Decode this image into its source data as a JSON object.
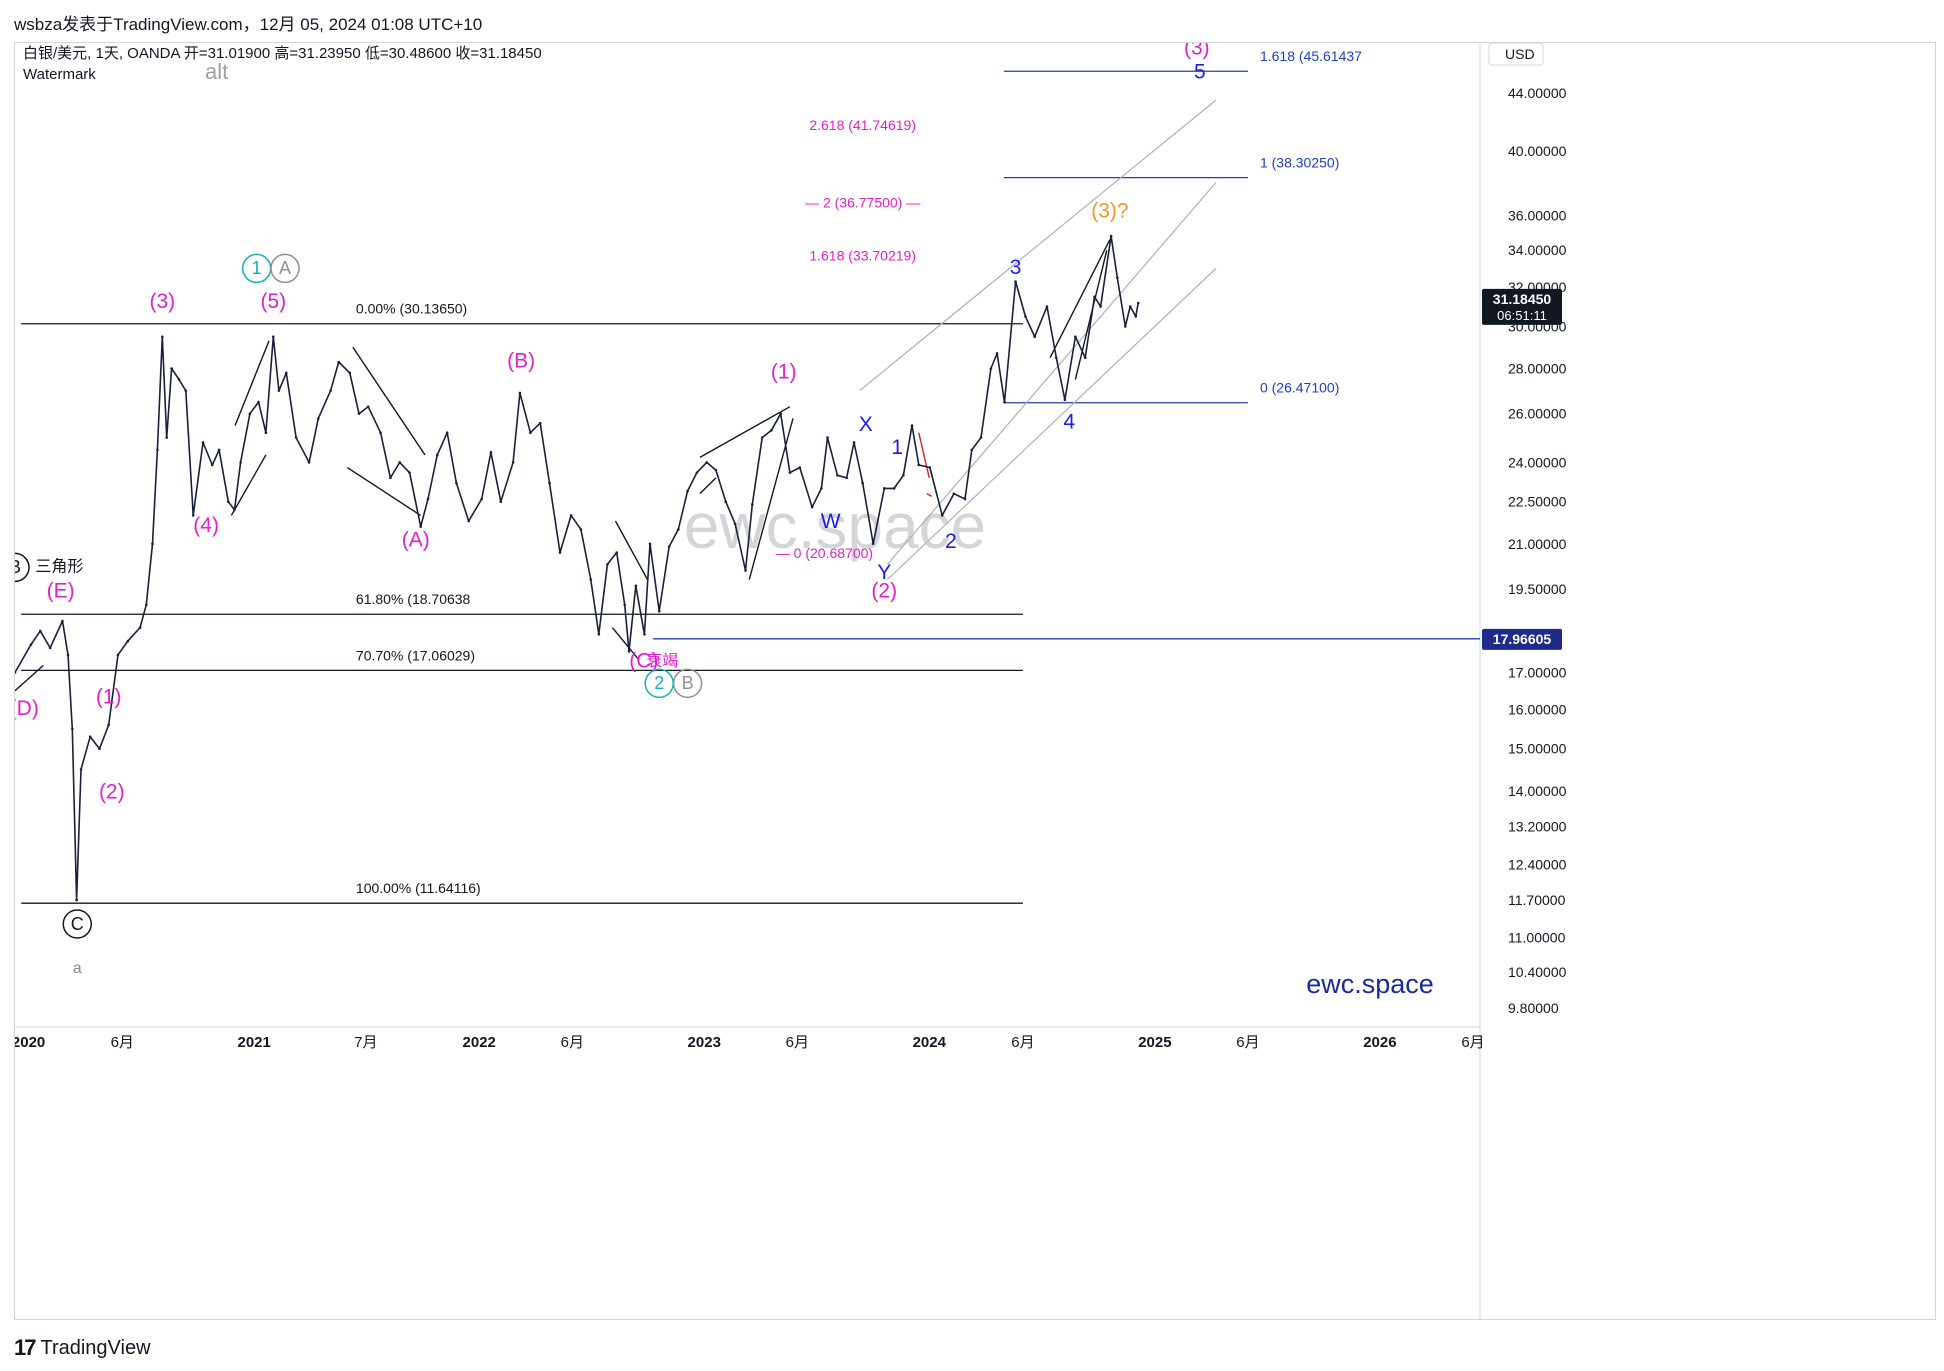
{
  "meta": {
    "publish_line": "wsbza发表于TradingView.com，12月 05, 2024 01:08 UTC+10",
    "footer_brand": "TradingView",
    "watermark_text": "ewc.space",
    "brand_corner": "ewc.space"
  },
  "chart_data": {
    "type": "line",
    "symbol_line": "白银/美元, 1天, OANDA  开=31.01900  高=31.23950  低=30.48600  收=31.18450",
    "indicator_label": "Watermark",
    "alt_label": "alt",
    "currency": "USD",
    "scale": "log",
    "ylim": [
      9.5,
      47
    ],
    "x_ticks": [
      "2020",
      "6月",
      "2021",
      "7月",
      "2022",
      "6月",
      "2023",
      "6月",
      "2024",
      "6月",
      "2025",
      "6月",
      "2026",
      "6月"
    ],
    "x_tick_dates": [
      "2020-01",
      "2020-06",
      "2021-01",
      "2021-07",
      "2022-01",
      "2022-06",
      "2023-01",
      "2023-06",
      "2024-01",
      "2024-06",
      "2025-01",
      "2025-06",
      "2026-01",
      "2026-06"
    ],
    "y_ticks": [
      "9.80000",
      "10.40000",
      "11.00000",
      "11.70000",
      "12.40000",
      "13.20000",
      "14.00000",
      "15.00000",
      "16.00000",
      "17.00000",
      "19.50000",
      "21.00000",
      "22.50000",
      "24.00000",
      "26.00000",
      "28.00000",
      "30.00000",
      "32.00000",
      "34.00000",
      "36.00000",
      "40.00000",
      "44.00000"
    ],
    "y_tick_values": [
      9.8,
      10.4,
      11.0,
      11.7,
      12.4,
      13.2,
      14.0,
      15.0,
      16.0,
      17.0,
      19.5,
      21.0,
      22.5,
      24.0,
      26.0,
      28.0,
      30.0,
      32.0,
      34.0,
      36.0,
      40.0,
      44.0
    ],
    "price_tag": {
      "value": 31.1845,
      "label": "31.18450",
      "countdown": "06:51:11",
      "color": "#131722"
    },
    "level_tag": {
      "value": 17.96605,
      "label": "17.96605",
      "color": "#1e2b8c"
    },
    "series": [
      {
        "color": "#1a1f3d",
        "points": [
          [
            "2019-12-10",
            17.0
          ],
          [
            "2020-01-05",
            17.8
          ],
          [
            "2020-01-20",
            18.2
          ],
          [
            "2020-02-05",
            17.7
          ],
          [
            "2020-02-25",
            18.5
          ],
          [
            "2020-03-05",
            17.5
          ],
          [
            "2020-03-12",
            15.5
          ],
          [
            "2020-03-19",
            11.7
          ],
          [
            "2020-03-26",
            14.5
          ],
          [
            "2020-04-10",
            15.3
          ],
          [
            "2020-04-25",
            15.0
          ],
          [
            "2020-05-10",
            15.6
          ],
          [
            "2020-05-25",
            17.5
          ],
          [
            "2020-06-10",
            17.9
          ],
          [
            "2020-06-30",
            18.3
          ],
          [
            "2020-07-10",
            19.0
          ],
          [
            "2020-07-20",
            21.0
          ],
          [
            "2020-07-28",
            24.5
          ],
          [
            "2020-08-05",
            29.5
          ],
          [
            "2020-08-12",
            25.0
          ],
          [
            "2020-08-20",
            28.0
          ],
          [
            "2020-09-01",
            27.5
          ],
          [
            "2020-09-12",
            27.0
          ],
          [
            "2020-09-24",
            22.0
          ],
          [
            "2020-10-10",
            24.8
          ],
          [
            "2020-10-25",
            23.9
          ],
          [
            "2020-11-05",
            24.5
          ],
          [
            "2020-11-20",
            22.5
          ],
          [
            "2020-11-30",
            22.2
          ],
          [
            "2020-12-10",
            24.0
          ],
          [
            "2020-12-25",
            26.0
          ],
          [
            "2021-01-08",
            26.5
          ],
          [
            "2021-01-20",
            25.2
          ],
          [
            "2021-02-01",
            29.5
          ],
          [
            "2021-02-10",
            27.0
          ],
          [
            "2021-02-22",
            27.8
          ],
          [
            "2021-03-10",
            25.0
          ],
          [
            "2021-03-31",
            24.0
          ],
          [
            "2021-04-15",
            25.8
          ],
          [
            "2021-05-05",
            27.0
          ],
          [
            "2021-05-18",
            28.3
          ],
          [
            "2021-06-05",
            27.8
          ],
          [
            "2021-06-20",
            26.0
          ],
          [
            "2021-07-05",
            26.3
          ],
          [
            "2021-07-25",
            25.2
          ],
          [
            "2021-08-10",
            23.4
          ],
          [
            "2021-08-25",
            24.0
          ],
          [
            "2021-09-10",
            23.6
          ],
          [
            "2021-09-28",
            21.6
          ],
          [
            "2021-10-10",
            22.6
          ],
          [
            "2021-10-25",
            24.3
          ],
          [
            "2021-11-10",
            25.2
          ],
          [
            "2021-11-25",
            23.2
          ],
          [
            "2021-12-15",
            21.8
          ],
          [
            "2022-01-05",
            22.6
          ],
          [
            "2022-01-20",
            24.4
          ],
          [
            "2022-02-05",
            22.5
          ],
          [
            "2022-02-25",
            24.0
          ],
          [
            "2022-03-08",
            26.9
          ],
          [
            "2022-03-25",
            25.2
          ],
          [
            "2022-04-10",
            25.6
          ],
          [
            "2022-04-25",
            23.2
          ],
          [
            "2022-05-12",
            20.7
          ],
          [
            "2022-05-30",
            22.0
          ],
          [
            "2022-06-15",
            21.5
          ],
          [
            "2022-07-01",
            19.8
          ],
          [
            "2022-07-14",
            18.1
          ],
          [
            "2022-07-28",
            20.3
          ],
          [
            "2022-08-12",
            20.7
          ],
          [
            "2022-08-25",
            19.0
          ],
          [
            "2022-09-01",
            17.6
          ],
          [
            "2022-09-12",
            19.6
          ],
          [
            "2022-09-26",
            18.1
          ],
          [
            "2022-10-05",
            21.0
          ],
          [
            "2022-10-20",
            18.8
          ],
          [
            "2022-11-05",
            20.9
          ],
          [
            "2022-11-20",
            21.5
          ],
          [
            "2022-12-05",
            22.9
          ],
          [
            "2022-12-20",
            23.6
          ],
          [
            "2023-01-05",
            24.0
          ],
          [
            "2023-01-20",
            23.7
          ],
          [
            "2023-02-05",
            22.5
          ],
          [
            "2023-02-20",
            21.7
          ],
          [
            "2023-03-09",
            20.1
          ],
          [
            "2023-03-20",
            22.4
          ],
          [
            "2023-04-05",
            25.0
          ],
          [
            "2023-04-20",
            25.3
          ],
          [
            "2023-05-05",
            26.0
          ],
          [
            "2023-05-20",
            23.6
          ],
          [
            "2023-06-05",
            23.8
          ],
          [
            "2023-06-25",
            22.3
          ],
          [
            "2023-07-10",
            23.0
          ],
          [
            "2023-07-20",
            25.0
          ],
          [
            "2023-08-05",
            23.5
          ],
          [
            "2023-08-20",
            23.4
          ],
          [
            "2023-09-01",
            24.8
          ],
          [
            "2023-09-15",
            23.2
          ],
          [
            "2023-10-02",
            21.0
          ],
          [
            "2023-10-20",
            23.0
          ],
          [
            "2023-11-05",
            23.0
          ],
          [
            "2023-11-20",
            23.5
          ],
          [
            "2023-12-04",
            25.5
          ],
          [
            "2023-12-15",
            23.9
          ],
          [
            "2024-01-02",
            23.8
          ],
          [
            "2024-01-22",
            22.0
          ],
          [
            "2024-02-10",
            22.8
          ],
          [
            "2024-02-28",
            22.6
          ],
          [
            "2024-03-10",
            24.5
          ],
          [
            "2024-03-25",
            25.0
          ],
          [
            "2024-04-10",
            28.0
          ],
          [
            "2024-04-20",
            28.7
          ],
          [
            "2024-05-02",
            26.5
          ],
          [
            "2024-05-20",
            32.3
          ],
          [
            "2024-06-05",
            30.5
          ],
          [
            "2024-06-20",
            29.5
          ],
          [
            "2024-07-10",
            31.0
          ],
          [
            "2024-07-25",
            28.5
          ],
          [
            "2024-08-08",
            26.6
          ],
          [
            "2024-08-25",
            29.5
          ],
          [
            "2024-09-10",
            28.5
          ],
          [
            "2024-09-25",
            31.5
          ],
          [
            "2024-10-05",
            31.0
          ],
          [
            "2024-10-22",
            34.8
          ],
          [
            "2024-11-01",
            32.5
          ],
          [
            "2024-11-14",
            30.0
          ],
          [
            "2024-11-22",
            31.0
          ],
          [
            "2024-12-01",
            30.5
          ],
          [
            "2024-12-05",
            31.18
          ]
        ]
      }
    ],
    "hlines": [
      {
        "value": 30.1365,
        "label": "0.00% (30.13650)",
        "color": "#131722",
        "x0": "2019-12-20",
        "x1": "2024-06-01"
      },
      {
        "value": 18.70638,
        "label": "61.80% (18.70638",
        "color": "#131722",
        "x0": "2019-12-20",
        "x1": "2024-06-01"
      },
      {
        "value": 17.06029,
        "label": "70.70% (17.06029)",
        "color": "#131722",
        "x0": "2019-12-20",
        "x1": "2024-06-01"
      },
      {
        "value": 11.64116,
        "label": "100.00% (11.64116)",
        "color": "#131722",
        "x0": "2019-12-20",
        "x1": "2024-06-01"
      },
      {
        "value": 45.61437,
        "label": "1.618 (45.61437",
        "color": "#1f3fbf",
        "x0": "2024-05-01",
        "x1": "2025-06-01"
      },
      {
        "value": 38.3025,
        "label": "1 (38.30250)",
        "color": "#1f3fbf",
        "x0": "2024-05-01",
        "x1": "2025-06-01"
      },
      {
        "value": 26.471,
        "label": "0 (26.47100)",
        "color": "#1f3fbf",
        "x0": "2024-05-01",
        "x1": "2025-06-01"
      },
      {
        "value": 17.96605,
        "label": "",
        "color": "#1f3fbf",
        "x0": "2022-10-10",
        "x1": "2026-07-15"
      }
    ],
    "fib_labels": [
      {
        "value": 41.74619,
        "label": "2.618 (41.74619)",
        "color": "#e020c8",
        "x": "2023-09-15"
      },
      {
        "value": 36.775,
        "label": "— 2 (36.77500) —",
        "color": "#e020c8",
        "x": "2023-09-15"
      },
      {
        "value": 33.70219,
        "label": "1.618 (33.70219)",
        "color": "#e020c8",
        "x": "2023-09-15"
      },
      {
        "value": 20.687,
        "label": "— 0 (20.68700)",
        "color": "#e020c8",
        "x": "2023-07-15"
      }
    ],
    "channels": [
      {
        "color": "#b0b0b0",
        "lines": [
          [
            [
              "2023-09-10",
              27.0
            ],
            [
              "2025-04-10",
              43.5
            ]
          ],
          [
            [
              "2023-10-25",
              20.3
            ],
            [
              "2025-04-10",
              38.0
            ]
          ],
          [
            [
              "2023-10-25",
              19.8
            ],
            [
              "2025-04-10",
              33.0
            ]
          ]
        ]
      }
    ],
    "trendlines": [
      {
        "color": "#131722",
        "points": [
          [
            "2019-12-10",
            16.5
          ],
          [
            "2020-01-25",
            17.2
          ]
        ]
      },
      {
        "color": "#131722",
        "points": [
          [
            "2020-12-01",
            25.5
          ],
          [
            "2021-01-25",
            29.3
          ]
        ]
      },
      {
        "color": "#131722",
        "points": [
          [
            "2020-11-25",
            22.0
          ],
          [
            "2021-01-20",
            24.3
          ]
        ]
      },
      {
        "color": "#131722",
        "points": [
          [
            "2021-06-10",
            29.0
          ],
          [
            "2021-10-05",
            24.3
          ]
        ]
      },
      {
        "color": "#131722",
        "points": [
          [
            "2021-06-01",
            23.8
          ],
          [
            "2021-09-28",
            22.0
          ]
        ]
      },
      {
        "color": "#131722",
        "points": [
          [
            "2022-08-10",
            21.8
          ],
          [
            "2022-10-01",
            19.8
          ]
        ]
      },
      {
        "color": "#131722",
        "points": [
          [
            "2022-08-05",
            18.3
          ],
          [
            "2022-09-15",
            17.4
          ]
        ]
      },
      {
        "color": "#131722",
        "points": [
          [
            "2022-12-25",
            24.2
          ],
          [
            "2023-05-20",
            26.3
          ]
        ]
      },
      {
        "color": "#131722",
        "points": [
          [
            "2022-12-25",
            22.8
          ],
          [
            "2023-01-20",
            23.4
          ]
        ]
      },
      {
        "color": "#131722",
        "points": [
          [
            "2023-03-15",
            19.8
          ],
          [
            "2023-05-25",
            25.8
          ]
        ]
      },
      {
        "color": "#131722",
        "points": [
          [
            "2024-08-25",
            27.5
          ],
          [
            "2024-10-15",
            34.0
          ]
        ]
      },
      {
        "color": "#131722",
        "points": [
          [
            "2024-07-15",
            28.5
          ],
          [
            "2024-10-20",
            34.6
          ]
        ]
      },
      {
        "color": "#e02020",
        "points": [
          [
            "2023-12-15",
            25.2
          ],
          [
            "2024-01-01",
            23.4
          ]
        ]
      },
      {
        "color": "#e02020",
        "points": [
          [
            "2023-12-28",
            22.8
          ],
          [
            "2024-01-05",
            22.7
          ]
        ]
      }
    ],
    "annotations": [
      {
        "text": "(3)",
        "x": "2020-08-05",
        "y": 31.2,
        "color": "#e020c8"
      },
      {
        "text": "(5)",
        "x": "2021-02-01",
        "y": 31.2,
        "color": "#e020c8"
      },
      {
        "text": "(4)",
        "x": "2020-10-15",
        "y": 21.6,
        "color": "#e020c8"
      },
      {
        "text": "(A)",
        "x": "2021-09-20",
        "y": 21.1,
        "color": "#e020c8"
      },
      {
        "text": "(B)",
        "x": "2022-03-10",
        "y": 28.3,
        "color": "#e020c8"
      },
      {
        "text": "(E)",
        "x": "2020-02-22",
        "y": 19.4,
        "color": "#e020c8"
      },
      {
        "text": "(D)",
        "x": "2019-12-25",
        "y": 16.0,
        "color": "#e020c8"
      },
      {
        "text": "(1)",
        "x": "2020-05-10",
        "y": 16.3,
        "color": "#e020c8"
      },
      {
        "text": "(2)",
        "x": "2020-05-15",
        "y": 13.95,
        "color": "#e020c8"
      },
      {
        "text": "(1)",
        "x": "2023-05-10",
        "y": 27.8,
        "color": "#e020c8"
      },
      {
        "text": "(2)",
        "x": "2023-10-20",
        "y": 19.4,
        "color": "#e020c8"
      },
      {
        "text": "(C)",
        "x": "2022-09-25",
        "y": 17.3,
        "color": "#e020c8"
      },
      {
        "text": "衰竭",
        "x": "2022-10-25",
        "y": 17.3,
        "color": "#e020c8"
      },
      {
        "text": "(3)",
        "x": "2025-03-10",
        "y": 47.3,
        "color": "#e020c8"
      },
      {
        "text": "(3)?",
        "x": "2024-10-20",
        "y": 36.2,
        "color": "#f0962a"
      },
      {
        "text": "X",
        "x": "2023-09-20",
        "y": 25.5,
        "color": "#1a1aff"
      },
      {
        "text": "W",
        "x": "2023-07-25",
        "y": 21.75,
        "color": "#1a1aff"
      },
      {
        "text": "Y",
        "x": "2023-10-20",
        "y": 20.0,
        "color": "#1a1aff"
      },
      {
        "text": "1",
        "x": "2023-11-10",
        "y": 24.55,
        "color": "#1a1aff"
      },
      {
        "text": "2",
        "x": "2024-02-05",
        "y": 21.05,
        "color": "#1a1aff"
      },
      {
        "text": "3",
        "x": "2024-05-20",
        "y": 33.0,
        "color": "#1a1aff"
      },
      {
        "text": "4",
        "x": "2024-08-15",
        "y": 25.6,
        "color": "#1a1aff"
      },
      {
        "text": "5",
        "x": "2025-03-15",
        "y": 45.5,
        "color": "#1a1aff"
      },
      {
        "text": "三角形",
        "x": "2020-02-20",
        "y": 20.2,
        "color": "#131722"
      },
      {
        "text": "a",
        "x": "2020-03-20",
        "y": 10.45,
        "color": "#888888"
      }
    ],
    "circled_labels": [
      {
        "text": "1",
        "x": "2021-01-05",
        "y": 33.0,
        "color": "#12b0c0"
      },
      {
        "text": "A",
        "x": "2021-02-20",
        "y": 33.0,
        "color": "#909090"
      },
      {
        "text": "2",
        "x": "2022-10-20",
        "y": 16.7,
        "color": "#12b0c0"
      },
      {
        "text": "B",
        "x": "2022-12-05",
        "y": 16.7,
        "color": "#909090"
      },
      {
        "text": "B",
        "x": "2019-12-10",
        "y": 20.2,
        "color": "#131722"
      },
      {
        "text": "C",
        "x": "2020-03-20",
        "y": 11.25,
        "color": "#131722"
      }
    ]
  }
}
